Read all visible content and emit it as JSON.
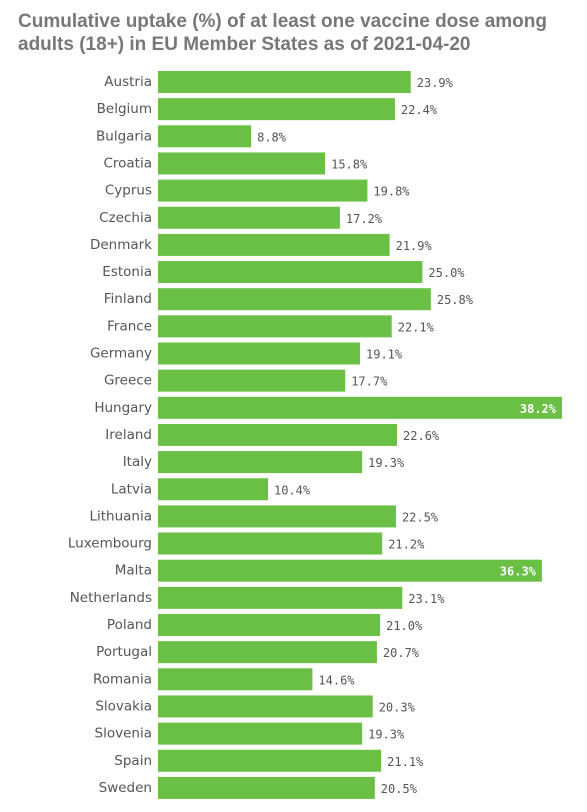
{
  "chart_data": {
    "type": "bar",
    "orientation": "horizontal",
    "title": "Cumulative uptake (%) of at least one vaccine dose among adults (18+) in EU Member States as of 2021-04-20",
    "xlabel": "",
    "ylabel": "",
    "xlim": [
      0,
      38.2
    ],
    "grid": false,
    "legend": "none",
    "bar_color": "#6abf45",
    "label_color": "#555555",
    "title_color": "#777777",
    "categories": [
      "Austria",
      "Belgium",
      "Bulgaria",
      "Croatia",
      "Cyprus",
      "Czechia",
      "Denmark",
      "Estonia",
      "Finland",
      "France",
      "Germany",
      "Greece",
      "Hungary",
      "Ireland",
      "Italy",
      "Latvia",
      "Lithuania",
      "Luxembourg",
      "Malta",
      "Netherlands",
      "Poland",
      "Portugal",
      "Romania",
      "Slovakia",
      "Slovenia",
      "Spain",
      "Sweden"
    ],
    "values": [
      23.9,
      22.4,
      8.8,
      15.8,
      19.8,
      17.2,
      21.9,
      25.0,
      25.8,
      22.1,
      19.1,
      17.7,
      38.2,
      22.6,
      19.3,
      10.4,
      22.5,
      21.2,
      36.3,
      23.1,
      21.0,
      20.7,
      14.6,
      20.3,
      19.3,
      21.1,
      20.5
    ],
    "value_labels": [
      "23.9%",
      "22.4%",
      "8.8%",
      "15.8%",
      "19.8%",
      "17.2%",
      "21.9%",
      "25.0%",
      "25.8%",
      "22.1%",
      "19.1%",
      "17.7%",
      "38.2%",
      "22.6%",
      "19.3%",
      "10.4%",
      "22.5%",
      "21.2%",
      "36.3%",
      "23.1%",
      "21.0%",
      "20.7%",
      "14.6%",
      "20.3%",
      "19.3%",
      "21.1%",
      "20.5%"
    ]
  }
}
